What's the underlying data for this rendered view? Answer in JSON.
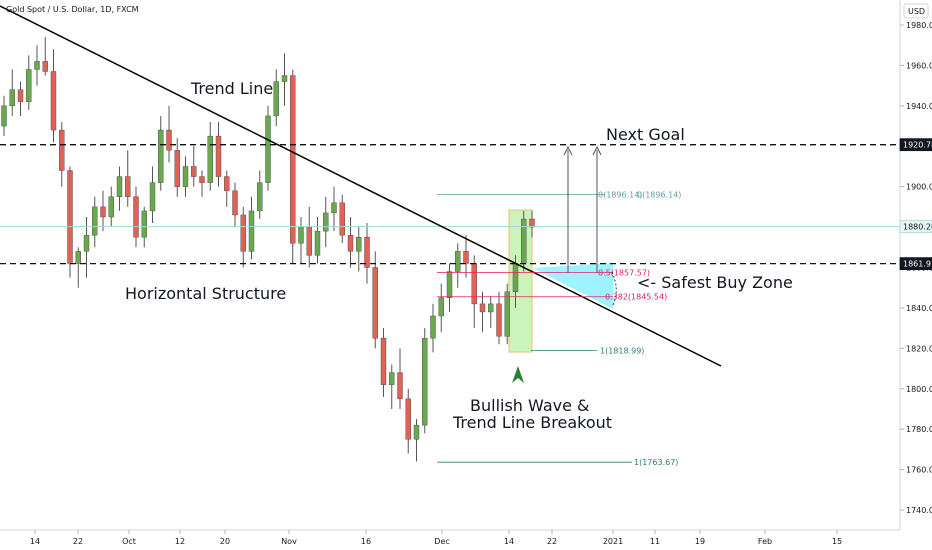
{
  "header": {
    "title": "Gold Spot / U.S. Dollar, 1D, FXCM"
  },
  "currency_badge": "USD",
  "price_tags": [
    {
      "value": "1920.78",
      "price": 1920.78,
      "style": "dark"
    },
    {
      "value": "1880.20",
      "price": 1880.2,
      "style": "teal"
    },
    {
      "value": "1861.91",
      "price": 1861.91,
      "style": "dark"
    }
  ],
  "annotations": {
    "trend_line": "Trend Line",
    "horizontal_structure": "Horizontal Structure",
    "next_goal": "Next Goal",
    "safest_buy_zone": "<- Safest Buy Zone",
    "bullish_wave_line1": "Bullish Wave &",
    "bullish_wave_line2": "Trend Line Breakout"
  },
  "fib_labels": [
    {
      "text": "0(1896.14)",
      "price": 1896.14,
      "color": "#5f9ea0"
    },
    {
      "text": "0(1896.14)",
      "price": 1896.14,
      "color": "#5f9ea0"
    },
    {
      "text": "0.5(1857.57)",
      "price": 1857.57,
      "color": "#e91e63"
    },
    {
      "text": "0.382(1845.54)",
      "price": 1845.54,
      "color": "#e91e63"
    },
    {
      "text": "1(1818.99)",
      "price": 1818.99,
      "color": "#2e7d7a"
    },
    {
      "text": "1(1763.67)",
      "price": 1763.67,
      "color": "#2e7d7a"
    }
  ],
  "colors": {
    "bull": "#6aa84f",
    "bear": "#e06155",
    "wick": "#555555",
    "zone_cyan": "#8ef0ff",
    "zone_green": "#b6f0a0",
    "zone_border": "#f0a030",
    "arrow_green": "#2e7d32",
    "axis_bg": "#ffffff",
    "grid": "#f0f3fa"
  },
  "chart_data": {
    "type": "candlestick",
    "title": "Gold Spot / U.S. Dollar, 1D, FXCM",
    "ylim": [
      1730,
      1990
    ],
    "y_ticks": [
      "1980.00",
      "1960.00",
      "1940.00",
      "1920.00",
      "1900.00",
      "1880.00",
      "1860.00",
      "1840.00",
      "1820.00",
      "1800.00",
      "1780.00",
      "1760.00",
      "1740.00"
    ],
    "x_ticks": [
      "14",
      "22",
      "Oct",
      "12",
      "20",
      "Nov",
      "16",
      "Dec",
      "14",
      "22",
      "2021",
      "11",
      "19",
      "Feb",
      "15"
    ],
    "horizontal_levels": [
      1920.78,
      1861.91
    ],
    "candles": [
      [
        1930,
        1945,
        1925,
        1940
      ],
      [
        1940,
        1958,
        1935,
        1948
      ],
      [
        1948,
        1952,
        1935,
        1942
      ],
      [
        1942,
        1965,
        1938,
        1958
      ],
      [
        1958,
        1970,
        1950,
        1962
      ],
      [
        1962,
        1974,
        1955,
        1957
      ],
      [
        1957,
        1968,
        1922,
        1928
      ],
      [
        1928,
        1932,
        1900,
        1908
      ],
      [
        1908,
        1910,
        1855,
        1862
      ],
      [
        1862,
        1870,
        1850,
        1868
      ],
      [
        1868,
        1885,
        1855,
        1876
      ],
      [
        1876,
        1895,
        1870,
        1890
      ],
      [
        1890,
        1898,
        1878,
        1885
      ],
      [
        1885,
        1900,
        1880,
        1895
      ],
      [
        1895,
        1910,
        1888,
        1905
      ],
      [
        1905,
        1918,
        1890,
        1895
      ],
      [
        1895,
        1900,
        1870,
        1875
      ],
      [
        1875,
        1890,
        1870,
        1888
      ],
      [
        1888,
        1910,
        1882,
        1902
      ],
      [
        1902,
        1935,
        1898,
        1928
      ],
      [
        1928,
        1940,
        1912,
        1918
      ],
      [
        1918,
        1924,
        1895,
        1900
      ],
      [
        1900,
        1915,
        1895,
        1910
      ],
      [
        1910,
        1920,
        1900,
        1905
      ],
      [
        1905,
        1908,
        1895,
        1902
      ],
      [
        1902,
        1932,
        1898,
        1925
      ],
      [
        1925,
        1932,
        1900,
        1905
      ],
      [
        1905,
        1908,
        1890,
        1898
      ],
      [
        1898,
        1902,
        1880,
        1886
      ],
      [
        1886,
        1890,
        1860,
        1868
      ],
      [
        1868,
        1895,
        1864,
        1888
      ],
      [
        1888,
        1908,
        1884,
        1902
      ],
      [
        1902,
        1940,
        1898,
        1935
      ],
      [
        1935,
        1958,
        1930,
        1952
      ],
      [
        1952,
        1966,
        1940,
        1955
      ],
      [
        1955,
        1958,
        1862,
        1872
      ],
      [
        1872,
        1885,
        1862,
        1880
      ],
      [
        1880,
        1890,
        1860,
        1866
      ],
      [
        1866,
        1885,
        1862,
        1878
      ],
      [
        1878,
        1895,
        1870,
        1887
      ],
      [
        1887,
        1900,
        1878,
        1892
      ],
      [
        1892,
        1896,
        1872,
        1876
      ],
      [
        1876,
        1885,
        1860,
        1868
      ],
      [
        1868,
        1880,
        1858,
        1875
      ],
      [
        1875,
        1882,
        1852,
        1860
      ],
      [
        1860,
        1868,
        1820,
        1825
      ],
      [
        1825,
        1830,
        1796,
        1802
      ],
      [
        1802,
        1812,
        1790,
        1808
      ],
      [
        1808,
        1820,
        1790,
        1795
      ],
      [
        1795,
        1800,
        1768,
        1775
      ],
      [
        1775,
        1785,
        1764,
        1782
      ],
      [
        1782,
        1830,
        1778,
        1825
      ],
      [
        1825,
        1842,
        1818,
        1836
      ],
      [
        1836,
        1852,
        1828,
        1845
      ],
      [
        1845,
        1862,
        1838,
        1858
      ],
      [
        1858,
        1872,
        1850,
        1868
      ],
      [
        1868,
        1876,
        1855,
        1862
      ],
      [
        1862,
        1866,
        1830,
        1842
      ],
      [
        1842,
        1848,
        1828,
        1838
      ],
      [
        1838,
        1846,
        1830,
        1842
      ],
      [
        1842,
        1848,
        1822,
        1826
      ],
      [
        1826,
        1852,
        1822,
        1848
      ],
      [
        1848,
        1866,
        1840,
        1862
      ],
      [
        1862,
        1888,
        1858,
        1884
      ],
      [
        1884,
        1888,
        1875,
        1880
      ]
    ]
  }
}
